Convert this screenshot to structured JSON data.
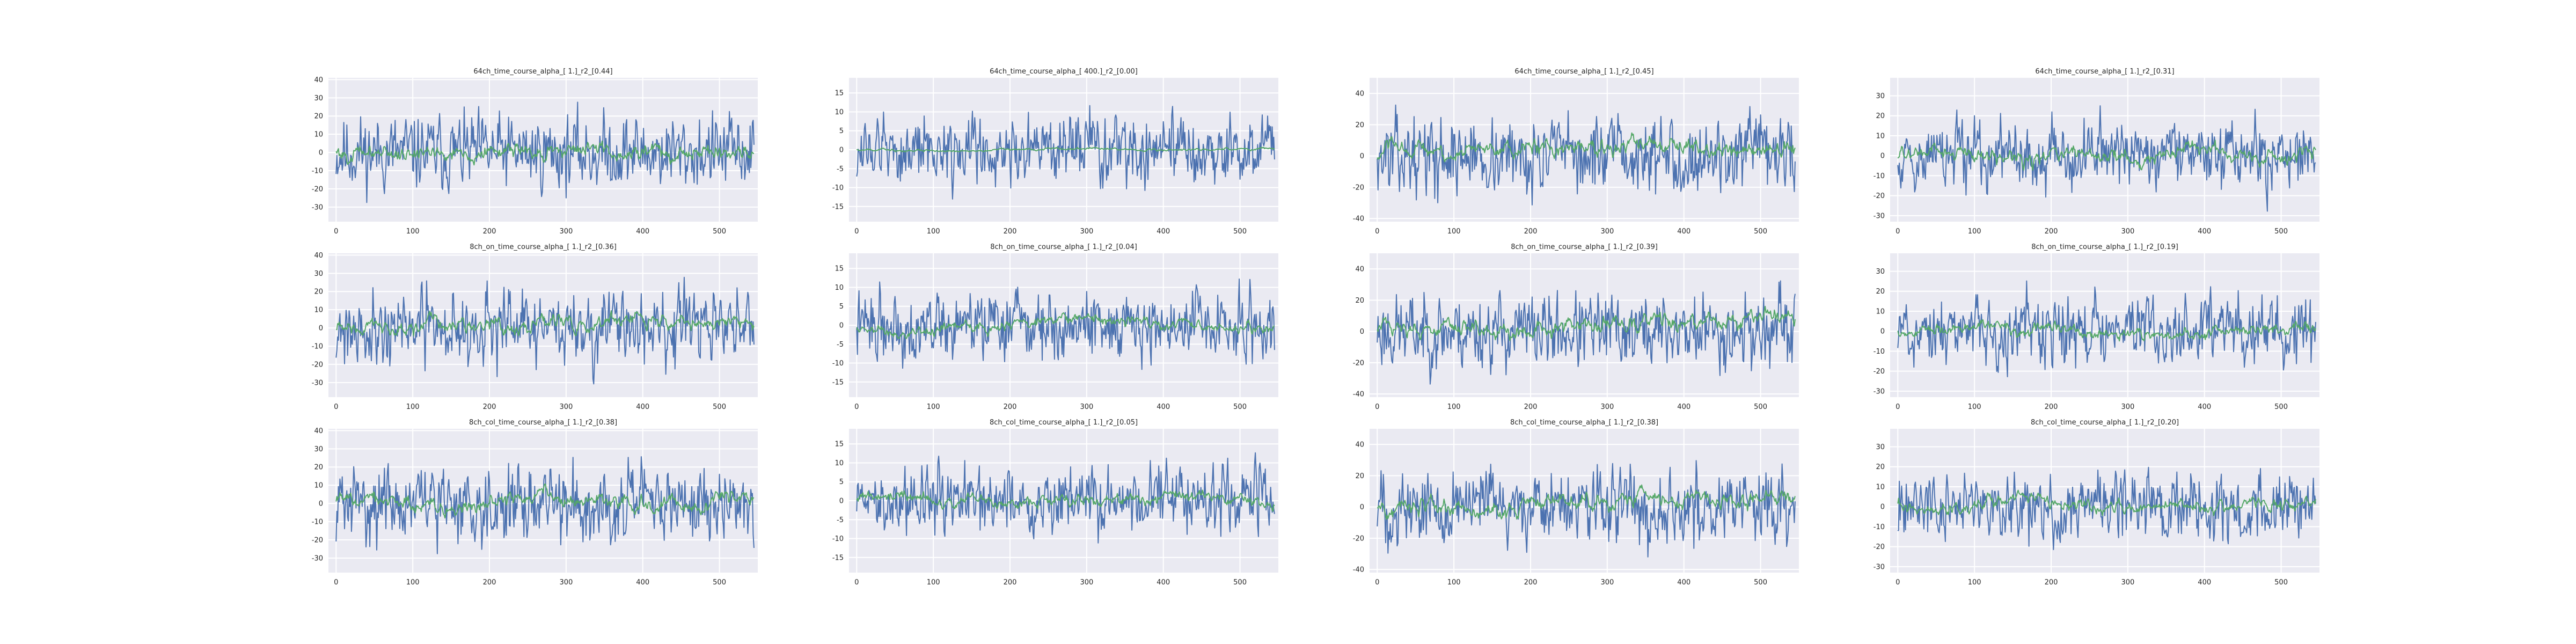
{
  "colors": {
    "series_a": "#4c72b0",
    "series_b": "#55a868",
    "plot_bg": "#eaeaf2",
    "grid": "#ffffff"
  },
  "chart_data": [
    {
      "type": "line",
      "title": "64ch_time_course_alpha_[ 1.]_r2_[0.44]",
      "xlim": [
        -10,
        550
      ],
      "ylim": [
        -38,
        41
      ],
      "xticks": [
        0,
        100,
        200,
        300,
        400,
        500
      ],
      "yticks": [
        -30,
        -20,
        -10,
        0,
        10,
        20,
        30,
        40
      ],
      "grid": true,
      "series": [
        {
          "color": "#4c72b0",
          "amp": 17.0,
          "trend": 0,
          "seed": 11
        },
        {
          "color": "#55a868",
          "amp": 4.0,
          "trend": 10,
          "seed": 101
        }
      ]
    },
    {
      "type": "line",
      "title": "64ch_time_course_alpha_[ 400.]_r2_[0.00]",
      "xlim": [
        -10,
        550
      ],
      "ylim": [
        -19,
        19
      ],
      "xticks": [
        0,
        100,
        200,
        300,
        400,
        500
      ],
      "yticks": [
        -15,
        -10,
        -5,
        0,
        5,
        10,
        15
      ],
      "grid": true,
      "series": [
        {
          "color": "#4c72b0",
          "amp": 7.5,
          "trend": 0,
          "seed": 12
        },
        {
          "color": "#55a868",
          "amp": 0.3,
          "trend": 0,
          "seed": 102
        }
      ]
    },
    {
      "type": "line",
      "title": "64ch_time_course_alpha_[ 1.]_r2_[0.45]",
      "xlim": [
        -10,
        550
      ],
      "ylim": [
        -42,
        50
      ],
      "xticks": [
        0,
        100,
        200,
        300,
        400,
        500
      ],
      "yticks": [
        -40,
        -20,
        0,
        20,
        40
      ],
      "grid": true,
      "series": [
        {
          "color": "#4c72b0",
          "amp": 20.0,
          "trend": 0,
          "seed": 13
        },
        {
          "color": "#55a868",
          "amp": 5.0,
          "trend": 30,
          "seed": 103
        }
      ]
    },
    {
      "type": "line",
      "title": "64ch_time_course_alpha_[ 1.]_r2_[0.31]",
      "xlim": [
        -10,
        550
      ],
      "ylim": [
        -33,
        39
      ],
      "xticks": [
        0,
        100,
        200,
        300,
        400,
        500
      ],
      "yticks": [
        -30,
        -20,
        -10,
        0,
        10,
        20,
        30
      ],
      "grid": true,
      "series": [
        {
          "color": "#4c72b0",
          "amp": 14.0,
          "trend": 0,
          "seed": 14
        },
        {
          "color": "#55a868",
          "amp": 3.5,
          "trend": 2,
          "seed": 104
        }
      ]
    },
    {
      "type": "line",
      "title": "8ch_on_time_course_alpha_[ 1.]_r2_[0.36]",
      "xlim": [
        -10,
        550
      ],
      "ylim": [
        -38,
        41
      ],
      "xticks": [
        0,
        100,
        200,
        300,
        400,
        500
      ],
      "yticks": [
        -30,
        -20,
        -10,
        0,
        10,
        20,
        30,
        40
      ],
      "grid": true,
      "series": [
        {
          "color": "#4c72b0",
          "amp": 17.0,
          "trend": 0,
          "seed": 21
        },
        {
          "color": "#55a868",
          "amp": 4.0,
          "trend": 10,
          "seed": 201
        }
      ]
    },
    {
      "type": "line",
      "title": "8ch_on_time_course_alpha_[ 1.]_r2_[0.04]",
      "xlim": [
        -10,
        550
      ],
      "ylim": [
        -19,
        19
      ],
      "xticks": [
        0,
        100,
        200,
        300,
        400,
        500
      ],
      "yticks": [
        -15,
        -10,
        -5,
        0,
        5,
        10,
        15
      ],
      "grid": true,
      "series": [
        {
          "color": "#4c72b0",
          "amp": 7.5,
          "trend": 0,
          "seed": 22
        },
        {
          "color": "#55a868",
          "amp": 1.5,
          "trend": 0,
          "seed": 202
        }
      ]
    },
    {
      "type": "line",
      "title": "8ch_on_time_course_alpha_[ 1.]_r2_[0.39]",
      "xlim": [
        -10,
        550
      ],
      "ylim": [
        -42,
        50
      ],
      "xticks": [
        0,
        100,
        200,
        300,
        400,
        500
      ],
      "yticks": [
        -40,
        -20,
        0,
        20,
        40
      ],
      "grid": true,
      "series": [
        {
          "color": "#4c72b0",
          "amp": 20.0,
          "trend": 0,
          "seed": 23
        },
        {
          "color": "#55a868",
          "amp": 5.0,
          "trend": 28,
          "seed": 203
        }
      ]
    },
    {
      "type": "line",
      "title": "8ch_on_time_course_alpha_[ 1.]_r2_[0.19]",
      "xlim": [
        -10,
        550
      ],
      "ylim": [
        -33,
        39
      ],
      "xticks": [
        0,
        100,
        200,
        300,
        400,
        500
      ],
      "yticks": [
        -30,
        -20,
        -10,
        0,
        10,
        20,
        30
      ],
      "grid": true,
      "series": [
        {
          "color": "#4c72b0",
          "amp": 14.0,
          "trend": 0,
          "seed": 24
        },
        {
          "color": "#55a868",
          "amp": 3.0,
          "trend": 2,
          "seed": 204
        }
      ]
    },
    {
      "type": "line",
      "title": "8ch_col_time_course_alpha_[ 1.]_r2_[0.38]",
      "xlim": [
        -10,
        550
      ],
      "ylim": [
        -38,
        41
      ],
      "xticks": [
        0,
        100,
        200,
        300,
        400,
        500
      ],
      "yticks": [
        -30,
        -20,
        -10,
        0,
        10,
        20,
        30,
        40
      ],
      "grid": true,
      "series": [
        {
          "color": "#4c72b0",
          "amp": 17.0,
          "trend": 0,
          "seed": 31
        },
        {
          "color": "#55a868",
          "amp": 4.0,
          "trend": 10,
          "seed": 301
        }
      ]
    },
    {
      "type": "line",
      "title": "8ch_col_time_course_alpha_[ 1.]_r2_[0.05]",
      "xlim": [
        -10,
        550
      ],
      "ylim": [
        -19,
        19
      ],
      "xticks": [
        0,
        100,
        200,
        300,
        400,
        500
      ],
      "yticks": [
        -15,
        -10,
        -5,
        0,
        5,
        10,
        15
      ],
      "grid": true,
      "series": [
        {
          "color": "#4c72b0",
          "amp": 7.5,
          "trend": 0,
          "seed": 32
        },
        {
          "color": "#55a868",
          "amp": 1.5,
          "trend": 0,
          "seed": 302
        }
      ]
    },
    {
      "type": "line",
      "title": "8ch_col_time_course_alpha_[ 1.]_r2_[0.38]",
      "xlim": [
        -10,
        550
      ],
      "ylim": [
        -42,
        50
      ],
      "xticks": [
        0,
        100,
        200,
        300,
        400,
        500
      ],
      "yticks": [
        -40,
        -20,
        0,
        20,
        40
      ],
      "grid": true,
      "series": [
        {
          "color": "#4c72b0",
          "amp": 20.0,
          "trend": 0,
          "seed": 33
        },
        {
          "color": "#55a868",
          "amp": 5.0,
          "trend": 28,
          "seed": 303
        }
      ]
    },
    {
      "type": "line",
      "title": "8ch_col_time_course_alpha_[ 1.]_r2_[0.20]",
      "xlim": [
        -10,
        550
      ],
      "ylim": [
        -33,
        39
      ],
      "xticks": [
        0,
        100,
        200,
        300,
        400,
        500
      ],
      "yticks": [
        -30,
        -20,
        -10,
        0,
        10,
        20,
        30
      ],
      "grid": true,
      "series": [
        {
          "color": "#4c72b0",
          "amp": 14.0,
          "trend": 0,
          "seed": 34
        },
        {
          "color": "#55a868",
          "amp": 3.0,
          "trend": 2,
          "seed": 304
        }
      ]
    }
  ]
}
